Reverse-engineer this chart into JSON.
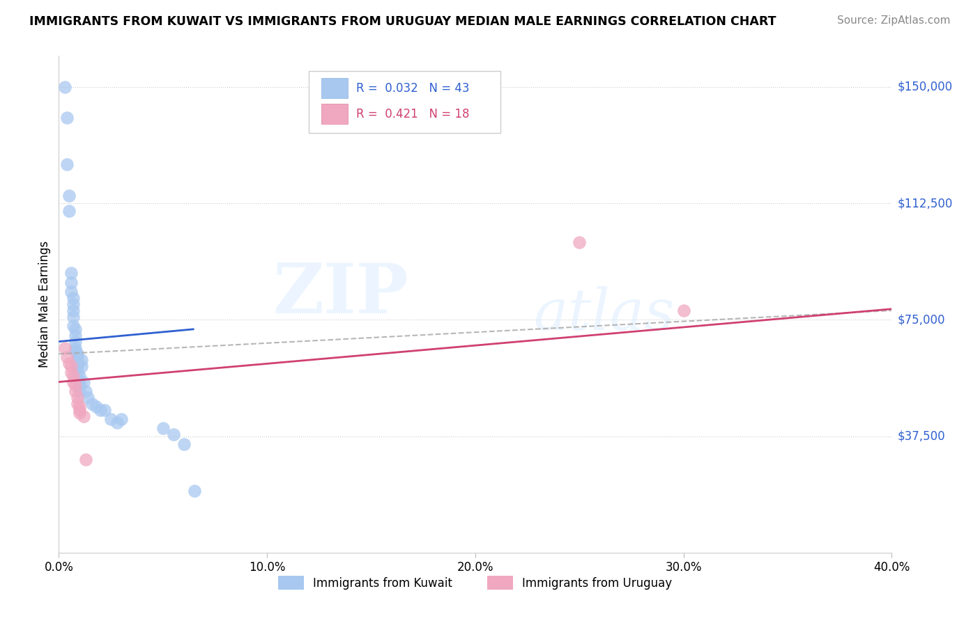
{
  "title": "IMMIGRANTS FROM KUWAIT VS IMMIGRANTS FROM URUGUAY MEDIAN MALE EARNINGS CORRELATION CHART",
  "source": "Source: ZipAtlas.com",
  "ylabel": "Median Male Earnings",
  "xlim": [
    0.0,
    0.4
  ],
  "ylim": [
    0,
    160000
  ],
  "yticks": [
    0,
    37500,
    75000,
    112500,
    150000
  ],
  "ytick_labels": [
    "",
    "$37,500",
    "$75,000",
    "$112,500",
    "$150,000"
  ],
  "xticks": [
    0.0,
    0.1,
    0.2,
    0.3,
    0.4
  ],
  "xtick_labels": [
    "0.0%",
    "10.0%",
    "20.0%",
    "30.0%",
    "40.0%"
  ],
  "legend1_r": "0.032",
  "legend1_n": "43",
  "legend2_r": "0.421",
  "legend2_n": "18",
  "legend1_label": "Immigrants from Kuwait",
  "legend2_label": "Immigrants from Uruguay",
  "kuwait_color": "#a8c8f0",
  "uruguay_color": "#f0a8c0",
  "kuwait_line_color": "#3060d0",
  "uruguay_line_color": "#d04070",
  "dashed_color": "#aaaaaa",
  "watermark_top": "ZIP",
  "watermark_bot": "atlas",
  "kuwait_x": [
    0.003,
    0.004,
    0.004,
    0.005,
    0.005,
    0.006,
    0.006,
    0.006,
    0.007,
    0.007,
    0.007,
    0.007,
    0.007,
    0.008,
    0.008,
    0.008,
    0.008,
    0.008,
    0.009,
    0.009,
    0.009,
    0.009,
    0.009,
    0.01,
    0.01,
    0.01,
    0.01,
    0.011,
    0.011,
    0.012,
    0.013,
    0.014,
    0.016,
    0.018,
    0.02,
    0.022,
    0.025,
    0.028,
    0.03,
    0.05,
    0.055,
    0.06,
    0.065
  ],
  "kuwait_y": [
    150000,
    140000,
    125000,
    115000,
    110000,
    90000,
    87000,
    84000,
    82000,
    80000,
    78000,
    76000,
    73000,
    72000,
    70000,
    68000,
    66000,
    65000,
    64000,
    63000,
    61000,
    60000,
    58000,
    57000,
    55000,
    54000,
    52000,
    62000,
    60000,
    55000,
    52000,
    50000,
    48000,
    47000,
    46000,
    46000,
    43000,
    42000,
    43000,
    40000,
    38000,
    35000,
    20000
  ],
  "uruguay_x": [
    0.003,
    0.004,
    0.005,
    0.006,
    0.006,
    0.007,
    0.007,
    0.008,
    0.008,
    0.009,
    0.009,
    0.01,
    0.01,
    0.01,
    0.012,
    0.013,
    0.25,
    0.3
  ],
  "uruguay_y": [
    66000,
    63000,
    61000,
    60000,
    58000,
    57000,
    55000,
    54000,
    52000,
    50000,
    48000,
    47000,
    46000,
    45000,
    44000,
    30000,
    100000,
    78000
  ],
  "kuwait_line_x0": 0.0,
  "kuwait_line_x1": 0.065,
  "kuwait_line_y0": 68000,
  "kuwait_line_y1": 72000,
  "uruguay_line_x0": 0.0,
  "uruguay_line_x1": 0.4,
  "uruguay_line_y0": 55000,
  "uruguay_line_y1": 78500,
  "dash_line_x0": 0.0,
  "dash_line_x1": 0.4,
  "dash_line_y0": 64000,
  "dash_line_y1": 78000
}
